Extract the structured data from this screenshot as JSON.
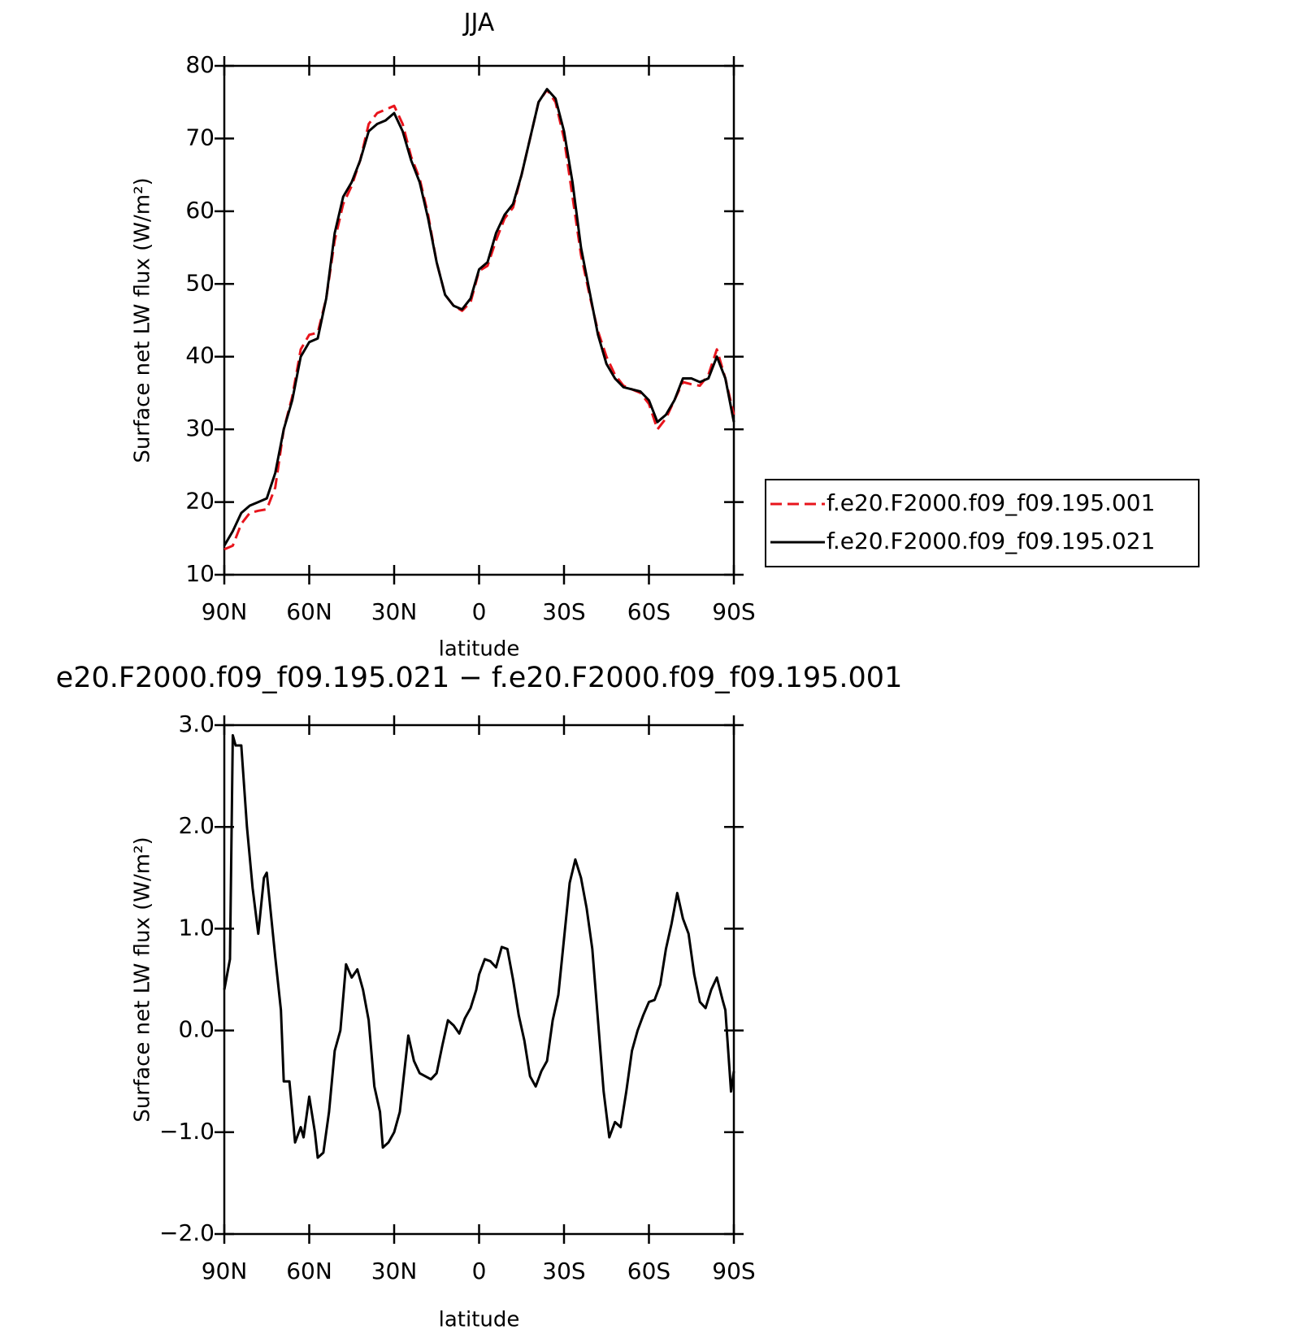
{
  "chart_data": [
    {
      "type": "line",
      "title": "JJA",
      "xlabel": "latitude",
      "ylabel": "Surface net LW flux (W/m²)",
      "x": [
        90,
        87,
        84,
        81,
        78,
        75,
        72,
        69,
        66,
        63,
        60,
        57,
        54,
        51,
        48,
        45,
        42,
        39,
        36,
        33,
        30,
        27,
        24,
        21,
        18,
        15,
        12,
        9,
        6,
        3,
        0,
        -3,
        -6,
        -9,
        -12,
        -15,
        -18,
        -21,
        -24,
        -27,
        -30,
        -33,
        -36,
        -39,
        -42,
        -45,
        -48,
        -51,
        -54,
        -57,
        -60,
        -63,
        -66,
        -69,
        -72,
        -75,
        -78,
        -81,
        -84,
        -87,
        -90
      ],
      "series": [
        {
          "name": "f.e20.F2000.f09_f09.195.001",
          "color": "#e8141c",
          "linestyle": "dashed",
          "values": [
            13.5,
            14,
            17,
            18.5,
            18.8,
            19,
            22,
            30,
            34.5,
            41,
            43,
            43.3,
            48,
            56,
            61,
            63.5,
            67,
            72,
            73.5,
            74,
            74.5,
            72,
            67.5,
            64.5,
            59.5,
            53,
            48.5,
            47,
            46.3,
            47.5,
            51.8,
            52.5,
            56,
            59,
            60.5,
            65,
            70,
            75,
            76.7,
            75,
            70,
            62,
            54,
            48.5,
            43.5,
            40,
            37.5,
            36,
            35.5,
            35,
            33.5,
            30,
            31.5,
            34,
            36.5,
            36.2,
            36,
            37.5,
            41,
            37,
            32
          ]
        },
        {
          "name": "f.e20.F2000.f09_f09.195.021",
          "color": "#000000",
          "linestyle": "solid",
          "values": [
            14,
            16,
            18.5,
            19.5,
            20,
            20.5,
            24,
            30,
            34,
            40,
            42,
            42.5,
            48,
            57,
            62,
            64,
            67,
            71,
            72,
            72.5,
            73.5,
            71,
            67,
            64,
            59,
            53,
            48.5,
            47,
            46.5,
            48,
            52,
            53,
            57,
            59.5,
            61,
            65,
            70,
            75,
            76.8,
            75.5,
            71,
            64,
            55,
            49,
            43,
            39,
            37,
            35.8,
            35.5,
            35.2,
            34,
            31,
            32,
            34,
            37,
            37,
            36.5,
            37,
            40,
            37,
            31
          ]
        }
      ],
      "xlim": [
        90,
        -90
      ],
      "xticks": [
        {
          "value": 90,
          "label": "90N"
        },
        {
          "value": 60,
          "label": "60N"
        },
        {
          "value": 30,
          "label": "30N"
        },
        0,
        {
          "value": -30,
          "label": "30S"
        },
        {
          "value": -60,
          "label": "60S"
        },
        {
          "value": -90,
          "label": "90S"
        }
      ],
      "ylim": [
        10,
        80
      ],
      "yticks": [
        10,
        20,
        30,
        40,
        50,
        60,
        70,
        80
      ],
      "legend": "right"
    },
    {
      "type": "line",
      "title": "e20.F2000.f09_f09.195.021 − f.e20.F2000.f09_f09.195.001",
      "xlabel": "latitude",
      "ylabel": "Surface net LW flux (W/m²)",
      "x": [
        90,
        88,
        87,
        86,
        84,
        82,
        80,
        78,
        76,
        75,
        72,
        70,
        69,
        67,
        65,
        63,
        62,
        60,
        58,
        57,
        55,
        53,
        51,
        49,
        47,
        45,
        43,
        41,
        39,
        37,
        35,
        34,
        32,
        30,
        28,
        26,
        25,
        23,
        21,
        19,
        17,
        15,
        13,
        11,
        9,
        7,
        5,
        3,
        1,
        0,
        -2,
        -4,
        -6,
        -8,
        -10,
        -12,
        -14,
        -16,
        -18,
        -20,
        -22,
        -24,
        -26,
        -28,
        -30,
        -32,
        -34,
        -36,
        -38,
        -40,
        -42,
        -44,
        -46,
        -48,
        -50,
        -52,
        -54,
        -56,
        -58,
        -60,
        -62,
        -64,
        -66,
        -68,
        -70,
        -72,
        -74,
        -76,
        -78,
        -80,
        -82,
        -84,
        -86,
        -87,
        -89,
        -90
      ],
      "series": [
        {
          "color": "#000000",
          "linestyle": "solid",
          "values": [
            0.4,
            0.7,
            2.9,
            2.8,
            2.8,
            2.0,
            1.4,
            0.95,
            1.5,
            1.55,
            0.72,
            0.2,
            -0.5,
            -0.5,
            -1.1,
            -0.95,
            -1.05,
            -0.65,
            -1.0,
            -1.25,
            -1.2,
            -0.8,
            -0.2,
            0.0,
            0.65,
            0.52,
            0.6,
            0.4,
            0.1,
            -0.55,
            -0.8,
            -1.15,
            -1.1,
            -1.0,
            -0.8,
            -0.3,
            -0.05,
            -0.3,
            -0.42,
            -0.45,
            -0.48,
            -0.42,
            -0.15,
            0.1,
            0.05,
            -0.03,
            0.12,
            0.22,
            0.4,
            0.55,
            0.7,
            0.68,
            0.62,
            0.82,
            0.8,
            0.5,
            0.15,
            -0.1,
            -0.45,
            -0.55,
            -0.4,
            -0.3,
            0.1,
            0.35,
            0.9,
            1.45,
            1.68,
            1.5,
            1.2,
            0.8,
            0.1,
            -0.6,
            -1.05,
            -0.9,
            -0.95,
            -0.6,
            -0.2,
            0.0,
            0.15,
            0.28,
            0.3,
            0.45,
            0.8,
            1.05,
            1.35,
            1.1,
            0.95,
            0.55,
            0.28,
            0.22,
            0.4,
            0.52,
            0.3,
            0.2,
            -0.6,
            -0.4
          ]
        }
      ],
      "xlim": [
        90,
        -90
      ],
      "xticks": [
        {
          "value": 90,
          "label": "90N"
        },
        {
          "value": 60,
          "label": "60N"
        },
        {
          "value": 30,
          "label": "30N"
        },
        0,
        {
          "value": -30,
          "label": "30S"
        },
        {
          "value": -60,
          "label": "60S"
        },
        {
          "value": -90,
          "label": "90S"
        }
      ],
      "ylim": [
        -2,
        3
      ],
      "yticks": [
        {
          "value": -2,
          "label": "−2.0"
        },
        {
          "value": -1,
          "label": "−1.0"
        },
        {
          "value": 0,
          "label": "0.0"
        },
        {
          "value": 1,
          "label": "1.0"
        },
        {
          "value": 2,
          "label": "2.0"
        },
        {
          "value": 3,
          "label": "3.0"
        }
      ]
    }
  ]
}
